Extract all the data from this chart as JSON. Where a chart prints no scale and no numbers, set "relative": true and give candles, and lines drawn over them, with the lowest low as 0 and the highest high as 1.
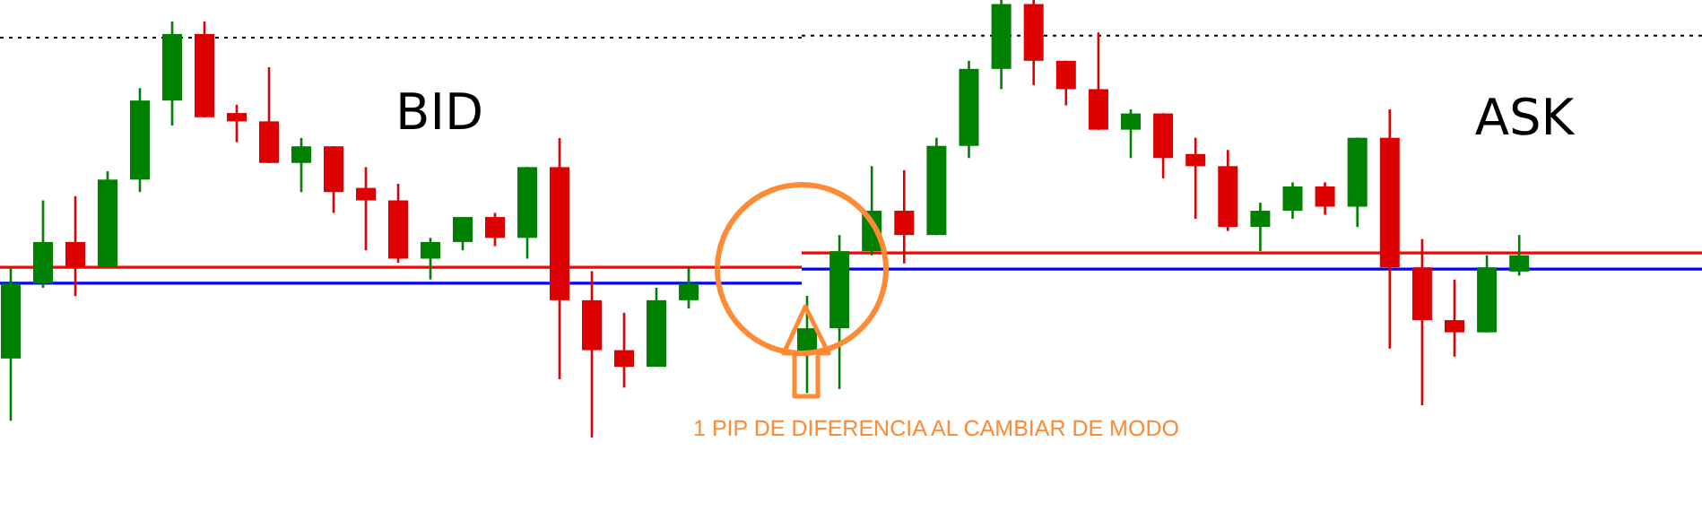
{
  "chart_data": [
    {
      "type": "candlestick",
      "title": "BID",
      "relative": true,
      "categories": [
        null,
        null,
        null,
        null,
        null,
        null,
        null,
        null,
        null,
        null,
        null,
        null,
        null,
        null,
        null,
        null,
        null,
        null,
        null,
        null,
        null,
        null
      ],
      "ohlc": [
        [
          0.19,
          0.41,
          0.04,
          0.37
        ],
        [
          0.37,
          0.57,
          0.36,
          0.47
        ],
        [
          0.47,
          0.58,
          0.34,
          0.41
        ],
        [
          0.41,
          0.64,
          0.41,
          0.62
        ],
        [
          0.62,
          0.84,
          0.59,
          0.81
        ],
        [
          0.81,
          1.0,
          0.75,
          0.97
        ],
        [
          0.97,
          1.0,
          0.77,
          0.77
        ],
        [
          0.78,
          0.8,
          0.71,
          0.76
        ],
        [
          0.76,
          0.89,
          0.66,
          0.66
        ],
        [
          0.66,
          0.72,
          0.59,
          0.7
        ],
        [
          0.7,
          0.7,
          0.54,
          0.59
        ],
        [
          0.6,
          0.65,
          0.45,
          0.57
        ],
        [
          0.57,
          0.61,
          0.42,
          0.43
        ],
        [
          0.43,
          0.48,
          0.38,
          0.47
        ],
        [
          0.47,
          0.53,
          0.45,
          0.53
        ],
        [
          0.53,
          0.54,
          0.46,
          0.48
        ],
        [
          0.48,
          0.65,
          0.43,
          0.65
        ],
        [
          0.65,
          0.72,
          0.14,
          0.33
        ],
        [
          0.33,
          0.4,
          0.0,
          0.21
        ],
        [
          0.21,
          0.3,
          0.12,
          0.17
        ],
        [
          0.17,
          0.36,
          0.17,
          0.33
        ],
        [
          0.33,
          0.41,
          0.31,
          0.37
        ]
      ],
      "colors": [
        "#008000",
        "#008000",
        "#dd0000",
        "#008000",
        "#008000",
        "#008000",
        "#dd0000",
        "#dd0000",
        "#dd0000",
        "#008000",
        "#dd0000",
        "#dd0000",
        "#dd0000",
        "#008000",
        "#008000",
        "#dd0000",
        "#008000",
        "#dd0000",
        "#dd0000",
        "#dd0000",
        "#008000",
        "#008000"
      ],
      "ref_lines": [
        {
          "axis": "y",
          "value": 0.409,
          "color": "#ff0000"
        },
        {
          "axis": "y",
          "value": 0.371,
          "color": "#0000ff"
        },
        {
          "axis": "y",
          "value": 0.961,
          "color": "#000000",
          "line_style": "dotted"
        }
      ]
    },
    {
      "type": "candlestick",
      "title": "ASK",
      "relative": true,
      "categories": [
        null,
        null,
        null,
        null,
        null,
        null,
        null,
        null,
        null,
        null,
        null,
        null,
        null,
        null,
        null,
        null,
        null,
        null,
        null,
        null,
        null,
        null,
        null
      ],
      "ohlc": [
        [
          0.13,
          0.27,
          0.03,
          0.19
        ],
        [
          0.19,
          0.42,
          0.04,
          0.38
        ],
        [
          0.38,
          0.59,
          0.37,
          0.48
        ],
        [
          0.48,
          0.58,
          0.35,
          0.42
        ],
        [
          0.42,
          0.66,
          0.42,
          0.64
        ],
        [
          0.64,
          0.85,
          0.61,
          0.83
        ],
        [
          0.83,
          1.0,
          0.78,
          0.99
        ],
        [
          0.99,
          1.0,
          0.79,
          0.85
        ],
        [
          0.85,
          0.85,
          0.74,
          0.78
        ],
        [
          0.78,
          0.92,
          0.68,
          0.68
        ],
        [
          0.68,
          0.73,
          0.61,
          0.72
        ],
        [
          0.72,
          0.72,
          0.56,
          0.61
        ],
        [
          0.62,
          0.66,
          0.46,
          0.59
        ],
        [
          0.59,
          0.63,
          0.43,
          0.44
        ],
        [
          0.44,
          0.5,
          0.38,
          0.48
        ],
        [
          0.48,
          0.55,
          0.46,
          0.54
        ],
        [
          0.54,
          0.55,
          0.47,
          0.49
        ],
        [
          0.49,
          0.66,
          0.44,
          0.66
        ],
        [
          0.66,
          0.73,
          0.14,
          0.34
        ],
        [
          0.34,
          0.41,
          0.0,
          0.21
        ],
        [
          0.21,
          0.31,
          0.12,
          0.18
        ],
        [
          0.18,
          0.37,
          0.18,
          0.34
        ],
        [
          0.33,
          0.42,
          0.32,
          0.37
        ]
      ],
      "colors": [
        "#008000",
        "#008000",
        "#008000",
        "#dd0000",
        "#008000",
        "#008000",
        "#008000",
        "#dd0000",
        "#dd0000",
        "#dd0000",
        "#008000",
        "#dd0000",
        "#dd0000",
        "#dd0000",
        "#008000",
        "#008000",
        "#dd0000",
        "#008000",
        "#dd0000",
        "#dd0000",
        "#dd0000",
        "#008000",
        "#008000"
      ],
      "ref_lines": [
        {
          "axis": "y",
          "value": 0.376,
          "color": "#ff0000"
        },
        {
          "axis": "y",
          "value": 0.336,
          "color": "#0000ff"
        },
        {
          "axis": "y",
          "value": 0.912,
          "color": "#000000",
          "line_style": "dotted"
        }
      ],
      "annotations": [
        "1 PIP DE DIFERENCIA AL CAMBIAR DE MODO"
      ]
    }
  ]
}
